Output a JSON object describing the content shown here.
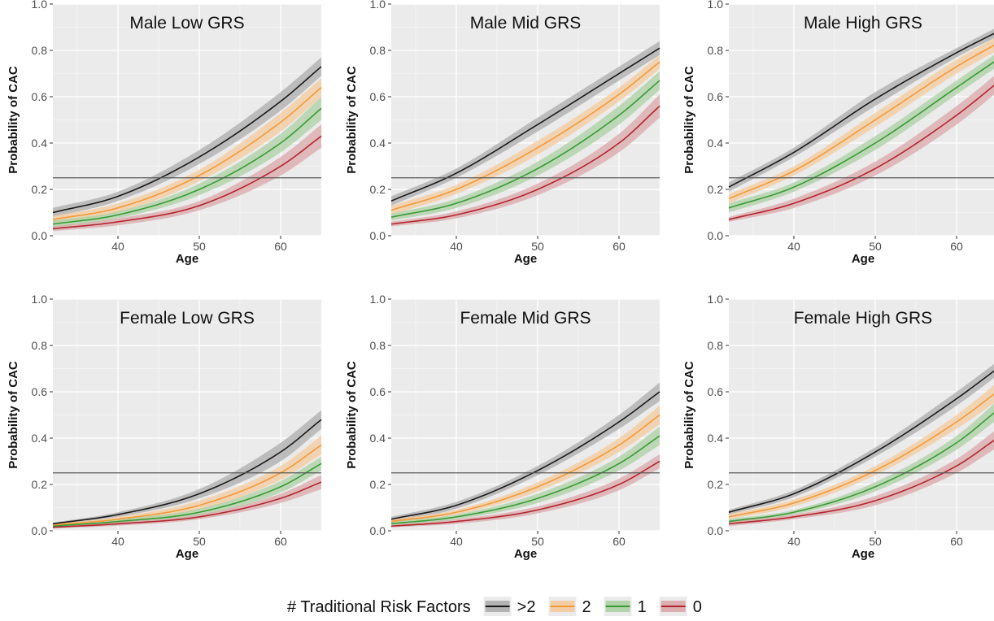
{
  "chart_data": [
    {
      "type": "line",
      "title": "Male Low GRS",
      "xlabel": "Age",
      "ylabel": "Probability of CAC",
      "xlim": [
        32,
        65
      ],
      "ylim": [
        0,
        1
      ],
      "xticks": [
        40,
        50,
        60
      ],
      "yticks": [
        0.0,
        0.2,
        0.4,
        0.6,
        0.8,
        1.0
      ],
      "ytick_labels": [
        "0.0",
        "0.2",
        "0.4",
        "0.6",
        "0.8",
        "1.0"
      ],
      "hline": 0.25,
      "grid": true,
      "series": [
        {
          "name": ">2",
          "color": "#1a1a1a",
          "band": "#a9a9a9",
          "x": [
            32,
            40,
            50,
            60,
            65
          ],
          "y": [
            0.1,
            0.17,
            0.34,
            0.58,
            0.73
          ],
          "lower": [
            0.08,
            0.15,
            0.31,
            0.54,
            0.69
          ],
          "upper": [
            0.12,
            0.19,
            0.37,
            0.62,
            0.77
          ]
        },
        {
          "name": "2",
          "color": "#f29a3a",
          "band": "#f3c99a",
          "x": [
            32,
            40,
            50,
            60,
            65
          ],
          "y": [
            0.07,
            0.12,
            0.26,
            0.49,
            0.64
          ],
          "lower": [
            0.055,
            0.1,
            0.235,
            0.45,
            0.6
          ],
          "upper": [
            0.085,
            0.14,
            0.285,
            0.53,
            0.68
          ]
        },
        {
          "name": "1",
          "color": "#3a9a35",
          "band": "#a9cf9f",
          "x": [
            32,
            40,
            50,
            60,
            65
          ],
          "y": [
            0.05,
            0.09,
            0.2,
            0.4,
            0.55
          ],
          "lower": [
            0.035,
            0.075,
            0.175,
            0.36,
            0.5
          ],
          "upper": [
            0.065,
            0.105,
            0.225,
            0.44,
            0.6
          ]
        },
        {
          "name": "0",
          "color": "#b3262e",
          "band": "#d9a3a6",
          "x": [
            32,
            40,
            50,
            60,
            65
          ],
          "y": [
            0.03,
            0.06,
            0.13,
            0.3,
            0.43
          ],
          "lower": [
            0.02,
            0.045,
            0.11,
            0.26,
            0.38
          ],
          "upper": [
            0.04,
            0.075,
            0.15,
            0.34,
            0.48
          ]
        }
      ]
    },
    {
      "type": "line",
      "title": "Male Mid GRS",
      "xlabel": "Age",
      "ylabel": "Probability of CAC",
      "xlim": [
        32,
        65
      ],
      "ylim": [
        0,
        1
      ],
      "xticks": [
        40,
        50,
        60
      ],
      "yticks": [
        0.0,
        0.2,
        0.4,
        0.6,
        0.8,
        1.0
      ],
      "ytick_labels": [
        "0.0",
        "0.2",
        "0.4",
        "0.6",
        "0.8",
        "1.0"
      ],
      "hline": 0.25,
      "grid": true,
      "series": [
        {
          "name": ">2",
          "color": "#1a1a1a",
          "band": "#a9a9a9",
          "x": [
            32,
            40,
            50,
            60,
            65
          ],
          "y": [
            0.15,
            0.27,
            0.48,
            0.7,
            0.81
          ],
          "lower": [
            0.13,
            0.25,
            0.45,
            0.67,
            0.78
          ],
          "upper": [
            0.17,
            0.29,
            0.51,
            0.73,
            0.84
          ]
        },
        {
          "name": "2",
          "color": "#f29a3a",
          "band": "#f3c99a",
          "x": [
            32,
            40,
            50,
            60,
            65
          ],
          "y": [
            0.11,
            0.2,
            0.38,
            0.61,
            0.75
          ],
          "lower": [
            0.09,
            0.18,
            0.35,
            0.58,
            0.72
          ],
          "upper": [
            0.13,
            0.22,
            0.41,
            0.64,
            0.78
          ]
        },
        {
          "name": "1",
          "color": "#3a9a35",
          "band": "#a9cf9f",
          "x": [
            32,
            40,
            50,
            60,
            65
          ],
          "y": [
            0.08,
            0.14,
            0.29,
            0.52,
            0.67
          ],
          "lower": [
            0.065,
            0.12,
            0.26,
            0.48,
            0.63
          ],
          "upper": [
            0.095,
            0.16,
            0.32,
            0.56,
            0.71
          ]
        },
        {
          "name": "0",
          "color": "#b3262e",
          "band": "#d9a3a6",
          "x": [
            32,
            40,
            50,
            60,
            65
          ],
          "y": [
            0.05,
            0.09,
            0.2,
            0.4,
            0.56
          ],
          "lower": [
            0.04,
            0.075,
            0.175,
            0.36,
            0.51
          ],
          "upper": [
            0.06,
            0.105,
            0.225,
            0.44,
            0.61
          ]
        }
      ]
    },
    {
      "type": "line",
      "title": "Male High GRS",
      "xlabel": "Age",
      "ylabel": "Probability of CAC",
      "xlim": [
        32,
        65
      ],
      "ylim": [
        0,
        1
      ],
      "xticks": [
        40,
        50,
        60
      ],
      "yticks": [
        0.0,
        0.2,
        0.4,
        0.6,
        0.8,
        1.0
      ],
      "ytick_labels": [
        "0.0",
        "0.2",
        "0.4",
        "0.6",
        "0.8",
        "1.0"
      ],
      "hline": 0.25,
      "grid": true,
      "series": [
        {
          "name": ">2",
          "color": "#1a1a1a",
          "band": "#a9a9a9",
          "x": [
            32,
            40,
            50,
            60,
            65
          ],
          "y": [
            0.21,
            0.36,
            0.59,
            0.79,
            0.88
          ],
          "lower": [
            0.19,
            0.34,
            0.56,
            0.77,
            0.86
          ],
          "upper": [
            0.23,
            0.38,
            0.62,
            0.81,
            0.9
          ]
        },
        {
          "name": "2",
          "color": "#f29a3a",
          "band": "#f3c99a",
          "x": [
            32,
            40,
            50,
            60,
            65
          ],
          "y": [
            0.16,
            0.28,
            0.5,
            0.73,
            0.83
          ],
          "lower": [
            0.14,
            0.26,
            0.47,
            0.7,
            0.8
          ],
          "upper": [
            0.18,
            0.3,
            0.53,
            0.76,
            0.86
          ]
        },
        {
          "name": "1",
          "color": "#3a9a35",
          "band": "#a9cf9f",
          "x": [
            32,
            40,
            50,
            60,
            65
          ],
          "y": [
            0.12,
            0.21,
            0.4,
            0.64,
            0.76
          ],
          "lower": [
            0.1,
            0.19,
            0.37,
            0.61,
            0.73
          ],
          "upper": [
            0.14,
            0.23,
            0.43,
            0.67,
            0.79
          ]
        },
        {
          "name": "0",
          "color": "#b3262e",
          "band": "#d9a3a6",
          "x": [
            32,
            40,
            50,
            60,
            65
          ],
          "y": [
            0.07,
            0.14,
            0.29,
            0.52,
            0.66
          ],
          "lower": [
            0.06,
            0.12,
            0.26,
            0.48,
            0.62
          ],
          "upper": [
            0.08,
            0.16,
            0.32,
            0.56,
            0.7
          ]
        }
      ]
    },
    {
      "type": "line",
      "title": "Female Low GRS",
      "xlabel": "Age",
      "ylabel": "Probability of CAC",
      "xlim": [
        32,
        65
      ],
      "ylim": [
        0,
        1
      ],
      "xticks": [
        40,
        50,
        60
      ],
      "yticks": [
        0.0,
        0.2,
        0.4,
        0.6,
        0.8,
        1.0
      ],
      "ytick_labels": [
        "0.0",
        "0.2",
        "0.4",
        "0.6",
        "0.8",
        "1.0"
      ],
      "hline": 0.25,
      "grid": true,
      "series": [
        {
          "name": ">2",
          "color": "#1a1a1a",
          "band": "#a9a9a9",
          "x": [
            32,
            40,
            50,
            60,
            65
          ],
          "y": [
            0.03,
            0.07,
            0.16,
            0.34,
            0.48
          ],
          "lower": [
            0.025,
            0.06,
            0.14,
            0.3,
            0.44
          ],
          "upper": [
            0.035,
            0.08,
            0.18,
            0.38,
            0.52
          ]
        },
        {
          "name": "2",
          "color": "#f29a3a",
          "band": "#f3c99a",
          "x": [
            32,
            40,
            50,
            60,
            65
          ],
          "y": [
            0.025,
            0.05,
            0.11,
            0.25,
            0.37
          ],
          "lower": [
            0.02,
            0.04,
            0.09,
            0.22,
            0.33
          ],
          "upper": [
            0.03,
            0.06,
            0.13,
            0.28,
            0.41
          ]
        },
        {
          "name": "1",
          "color": "#3a9a35",
          "band": "#a9cf9f",
          "x": [
            32,
            40,
            50,
            60,
            65
          ],
          "y": [
            0.02,
            0.04,
            0.08,
            0.19,
            0.29
          ],
          "lower": [
            0.015,
            0.03,
            0.065,
            0.165,
            0.26
          ],
          "upper": [
            0.025,
            0.05,
            0.095,
            0.215,
            0.32
          ]
        },
        {
          "name": "0",
          "color": "#b3262e",
          "band": "#d9a3a6",
          "x": [
            32,
            40,
            50,
            60,
            65
          ],
          "y": [
            0.015,
            0.03,
            0.06,
            0.14,
            0.21
          ],
          "lower": [
            0.01,
            0.022,
            0.05,
            0.12,
            0.18
          ],
          "upper": [
            0.02,
            0.038,
            0.07,
            0.16,
            0.24
          ]
        }
      ]
    },
    {
      "type": "line",
      "title": "Female Mid GRS",
      "xlabel": "Age",
      "ylabel": "Probability of CAC",
      "xlim": [
        32,
        65
      ],
      "ylim": [
        0,
        1
      ],
      "xticks": [
        40,
        50,
        60
      ],
      "yticks": [
        0.0,
        0.2,
        0.4,
        0.6,
        0.8,
        1.0
      ],
      "ytick_labels": [
        "0.0",
        "0.2",
        "0.4",
        "0.6",
        "0.8",
        "1.0"
      ],
      "hline": 0.25,
      "grid": true,
      "series": [
        {
          "name": ">2",
          "color": "#1a1a1a",
          "band": "#a9a9a9",
          "x": [
            32,
            40,
            50,
            60,
            65
          ],
          "y": [
            0.05,
            0.11,
            0.26,
            0.47,
            0.6
          ],
          "lower": [
            0.04,
            0.095,
            0.24,
            0.44,
            0.56
          ],
          "upper": [
            0.06,
            0.125,
            0.28,
            0.5,
            0.64
          ]
        },
        {
          "name": "2",
          "color": "#f29a3a",
          "band": "#f3c99a",
          "x": [
            32,
            40,
            50,
            60,
            65
          ],
          "y": [
            0.04,
            0.08,
            0.19,
            0.37,
            0.5
          ],
          "lower": [
            0.03,
            0.07,
            0.17,
            0.34,
            0.46
          ],
          "upper": [
            0.05,
            0.09,
            0.21,
            0.4,
            0.54
          ]
        },
        {
          "name": "1",
          "color": "#3a9a35",
          "band": "#a9cf9f",
          "x": [
            32,
            40,
            50,
            60,
            65
          ],
          "y": [
            0.03,
            0.06,
            0.14,
            0.29,
            0.41
          ],
          "lower": [
            0.02,
            0.05,
            0.12,
            0.26,
            0.37
          ],
          "upper": [
            0.04,
            0.07,
            0.16,
            0.32,
            0.45
          ]
        },
        {
          "name": "0",
          "color": "#b3262e",
          "band": "#d9a3a6",
          "x": [
            32,
            40,
            50,
            60,
            65
          ],
          "y": [
            0.02,
            0.04,
            0.09,
            0.2,
            0.3
          ],
          "lower": [
            0.015,
            0.03,
            0.075,
            0.175,
            0.27
          ],
          "upper": [
            0.025,
            0.05,
            0.105,
            0.225,
            0.33
          ]
        }
      ]
    },
    {
      "type": "line",
      "title": "Female High GRS",
      "xlabel": "Age",
      "ylabel": "Probability of CAC",
      "xlim": [
        32,
        65
      ],
      "ylim": [
        0,
        1
      ],
      "xticks": [
        40,
        50,
        60
      ],
      "yticks": [
        0.0,
        0.2,
        0.4,
        0.6,
        0.8,
        1.0
      ],
      "ytick_labels": [
        "0.0",
        "0.2",
        "0.4",
        "0.6",
        "0.8",
        "1.0"
      ],
      "hline": 0.25,
      "grid": true,
      "series": [
        {
          "name": ">2",
          "color": "#1a1a1a",
          "band": "#a9a9a9",
          "x": [
            32,
            40,
            50,
            60,
            65
          ],
          "y": [
            0.08,
            0.16,
            0.34,
            0.57,
            0.7
          ],
          "lower": [
            0.07,
            0.145,
            0.32,
            0.54,
            0.67
          ],
          "upper": [
            0.09,
            0.175,
            0.36,
            0.6,
            0.73
          ]
        },
        {
          "name": "2",
          "color": "#f29a3a",
          "band": "#f3c99a",
          "x": [
            32,
            40,
            50,
            60,
            65
          ],
          "y": [
            0.06,
            0.12,
            0.26,
            0.47,
            0.6
          ],
          "lower": [
            0.05,
            0.105,
            0.24,
            0.44,
            0.56
          ],
          "upper": [
            0.07,
            0.135,
            0.28,
            0.5,
            0.64
          ]
        },
        {
          "name": "1",
          "color": "#3a9a35",
          "band": "#a9cf9f",
          "x": [
            32,
            40,
            50,
            60,
            65
          ],
          "y": [
            0.04,
            0.08,
            0.19,
            0.38,
            0.52
          ],
          "lower": [
            0.03,
            0.07,
            0.17,
            0.35,
            0.48
          ],
          "upper": [
            0.05,
            0.09,
            0.21,
            0.41,
            0.56
          ]
        },
        {
          "name": "0",
          "color": "#b3262e",
          "band": "#d9a3a6",
          "x": [
            32,
            40,
            50,
            60,
            65
          ],
          "y": [
            0.03,
            0.06,
            0.13,
            0.28,
            0.4
          ],
          "lower": [
            0.02,
            0.05,
            0.11,
            0.25,
            0.36
          ],
          "upper": [
            0.04,
            0.07,
            0.15,
            0.31,
            0.44
          ]
        }
      ]
    }
  ],
  "legend": {
    "title": "# Traditional Risk Factors",
    "placement": "bottom",
    "items": [
      {
        "label": ">2",
        "color": "#1a1a1a",
        "band": "#a9a9a9"
      },
      {
        "label": "2",
        "color": "#f29a3a",
        "band": "#f3c99a"
      },
      {
        "label": "1",
        "color": "#3a9a35",
        "band": "#a9cf9f"
      },
      {
        "label": "0",
        "color": "#b3262e",
        "band": "#d9a3a6"
      }
    ]
  }
}
